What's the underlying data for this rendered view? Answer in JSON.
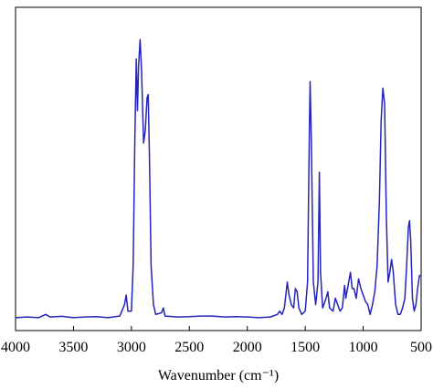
{
  "chart_data": {
    "type": "line",
    "x_label": "Wavenumber (cm⁻¹)",
    "xlim": [
      4000,
      500
    ],
    "xticks": [
      4000,
      3500,
      3000,
      2500,
      2000,
      1500,
      1000,
      500
    ],
    "ylim": [
      0,
      100
    ],
    "x": [
      4000,
      3900,
      3800,
      3740,
      3700,
      3600,
      3500,
      3400,
      3300,
      3200,
      3100,
      3060,
      3045,
      3030,
      3000,
      2985,
      2970,
      2958,
      2948,
      2938,
      2925,
      2912,
      2895,
      2880,
      2865,
      2855,
      2845,
      2830,
      2810,
      2790,
      2740,
      2725,
      2710,
      2600,
      2500,
      2400,
      2300,
      2200,
      2100,
      2000,
      1900,
      1800,
      1740,
      1720,
      1700,
      1680,
      1655,
      1640,
      1620,
      1600,
      1585,
      1570,
      1555,
      1530,
      1500,
      1480,
      1465,
      1458,
      1448,
      1430,
      1410,
      1390,
      1378,
      1368,
      1350,
      1320,
      1305,
      1290,
      1260,
      1240,
      1220,
      1200,
      1180,
      1160,
      1150,
      1130,
      1110,
      1095,
      1080,
      1060,
      1040,
      1020,
      1000,
      980,
      960,
      940,
      920,
      900,
      880,
      860,
      845,
      830,
      815,
      800,
      785,
      770,
      755,
      740,
      720,
      700,
      680,
      660,
      640,
      625,
      610,
      600,
      590,
      575,
      560,
      545,
      530,
      515,
      500
    ],
    "series": [
      {
        "color": "#2424b8",
        "values": [
          4,
          4.2,
          4,
          5,
          4.2,
          4.4,
          4,
          4.2,
          4.3,
          4,
          4.5,
          8,
          11,
          6,
          6,
          20,
          60,
          84,
          68,
          82,
          90,
          80,
          58,
          62,
          72,
          73,
          55,
          20,
          8,
          5,
          5.5,
          7,
          4.5,
          4.2,
          4.3,
          4.5,
          4.5,
          4.2,
          4.3,
          4.2,
          4,
          4.2,
          5,
          6,
          5,
          7,
          15,
          11,
          8,
          7,
          13,
          12,
          7,
          5,
          6,
          15,
          60,
          77,
          60,
          15,
          8,
          15,
          49,
          18,
          7,
          10,
          12,
          7,
          6,
          10,
          8,
          6,
          7,
          14,
          10,
          14,
          18,
          13,
          13,
          10,
          16,
          13,
          11,
          9,
          8,
          5,
          8,
          12,
          20,
          40,
          65,
          75,
          70,
          35,
          15,
          18,
          22,
          18,
          8,
          5,
          5,
          7,
          10,
          20,
          32,
          34,
          28,
          10,
          6,
          8,
          13,
          17,
          17
        ]
      }
    ]
  }
}
